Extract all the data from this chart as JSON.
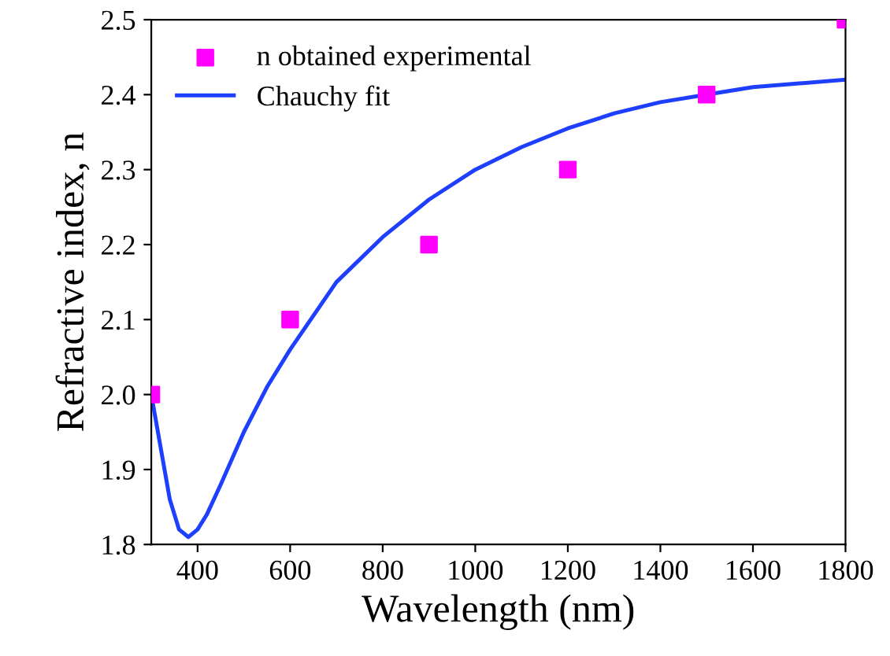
{
  "chart_data": {
    "type": "scatter",
    "xlabel": "Wavelength (nm)",
    "ylabel": "Refractive index, n",
    "xlim": [
      300,
      1800
    ],
    "ylim": [
      1.8,
      2.5
    ],
    "xticks": [
      400,
      600,
      800,
      1000,
      1200,
      1400,
      1600,
      1800
    ],
    "yticks": [
      1.8,
      1.9,
      {
        "value": 2,
        "label": "2.0"
      },
      2.1,
      2.2,
      2.3,
      2.4,
      2.5
    ],
    "grid": false,
    "legend": "top left",
    "series": [
      {
        "name": "n obtained experimental",
        "marker": "square",
        "color": "#ff00ff",
        "x": [
          300,
          600,
          900,
          1200,
          1500,
          1800
        ],
        "values": [
          2.0,
          2.1,
          2.2,
          2.3,
          2.4,
          2.5
        ]
      },
      {
        "name": "Chauchy fit",
        "type": "line",
        "marker": "none",
        "line_style": "solid",
        "color": "#1f3fff",
        "x": [
          300,
          320,
          340,
          360,
          380,
          400,
          420,
          450,
          500,
          550,
          600,
          700,
          800,
          900,
          1000,
          1100,
          1200,
          1300,
          1400,
          1500,
          1600,
          1700,
          1800
        ],
        "values": [
          2.0,
          1.93,
          1.86,
          1.82,
          1.81,
          1.82,
          1.84,
          1.88,
          1.95,
          2.01,
          2.06,
          2.15,
          2.21,
          2.26,
          2.3,
          2.33,
          2.355,
          2.375,
          2.39,
          2.4,
          2.41,
          2.415,
          2.42
        ]
      }
    ]
  }
}
